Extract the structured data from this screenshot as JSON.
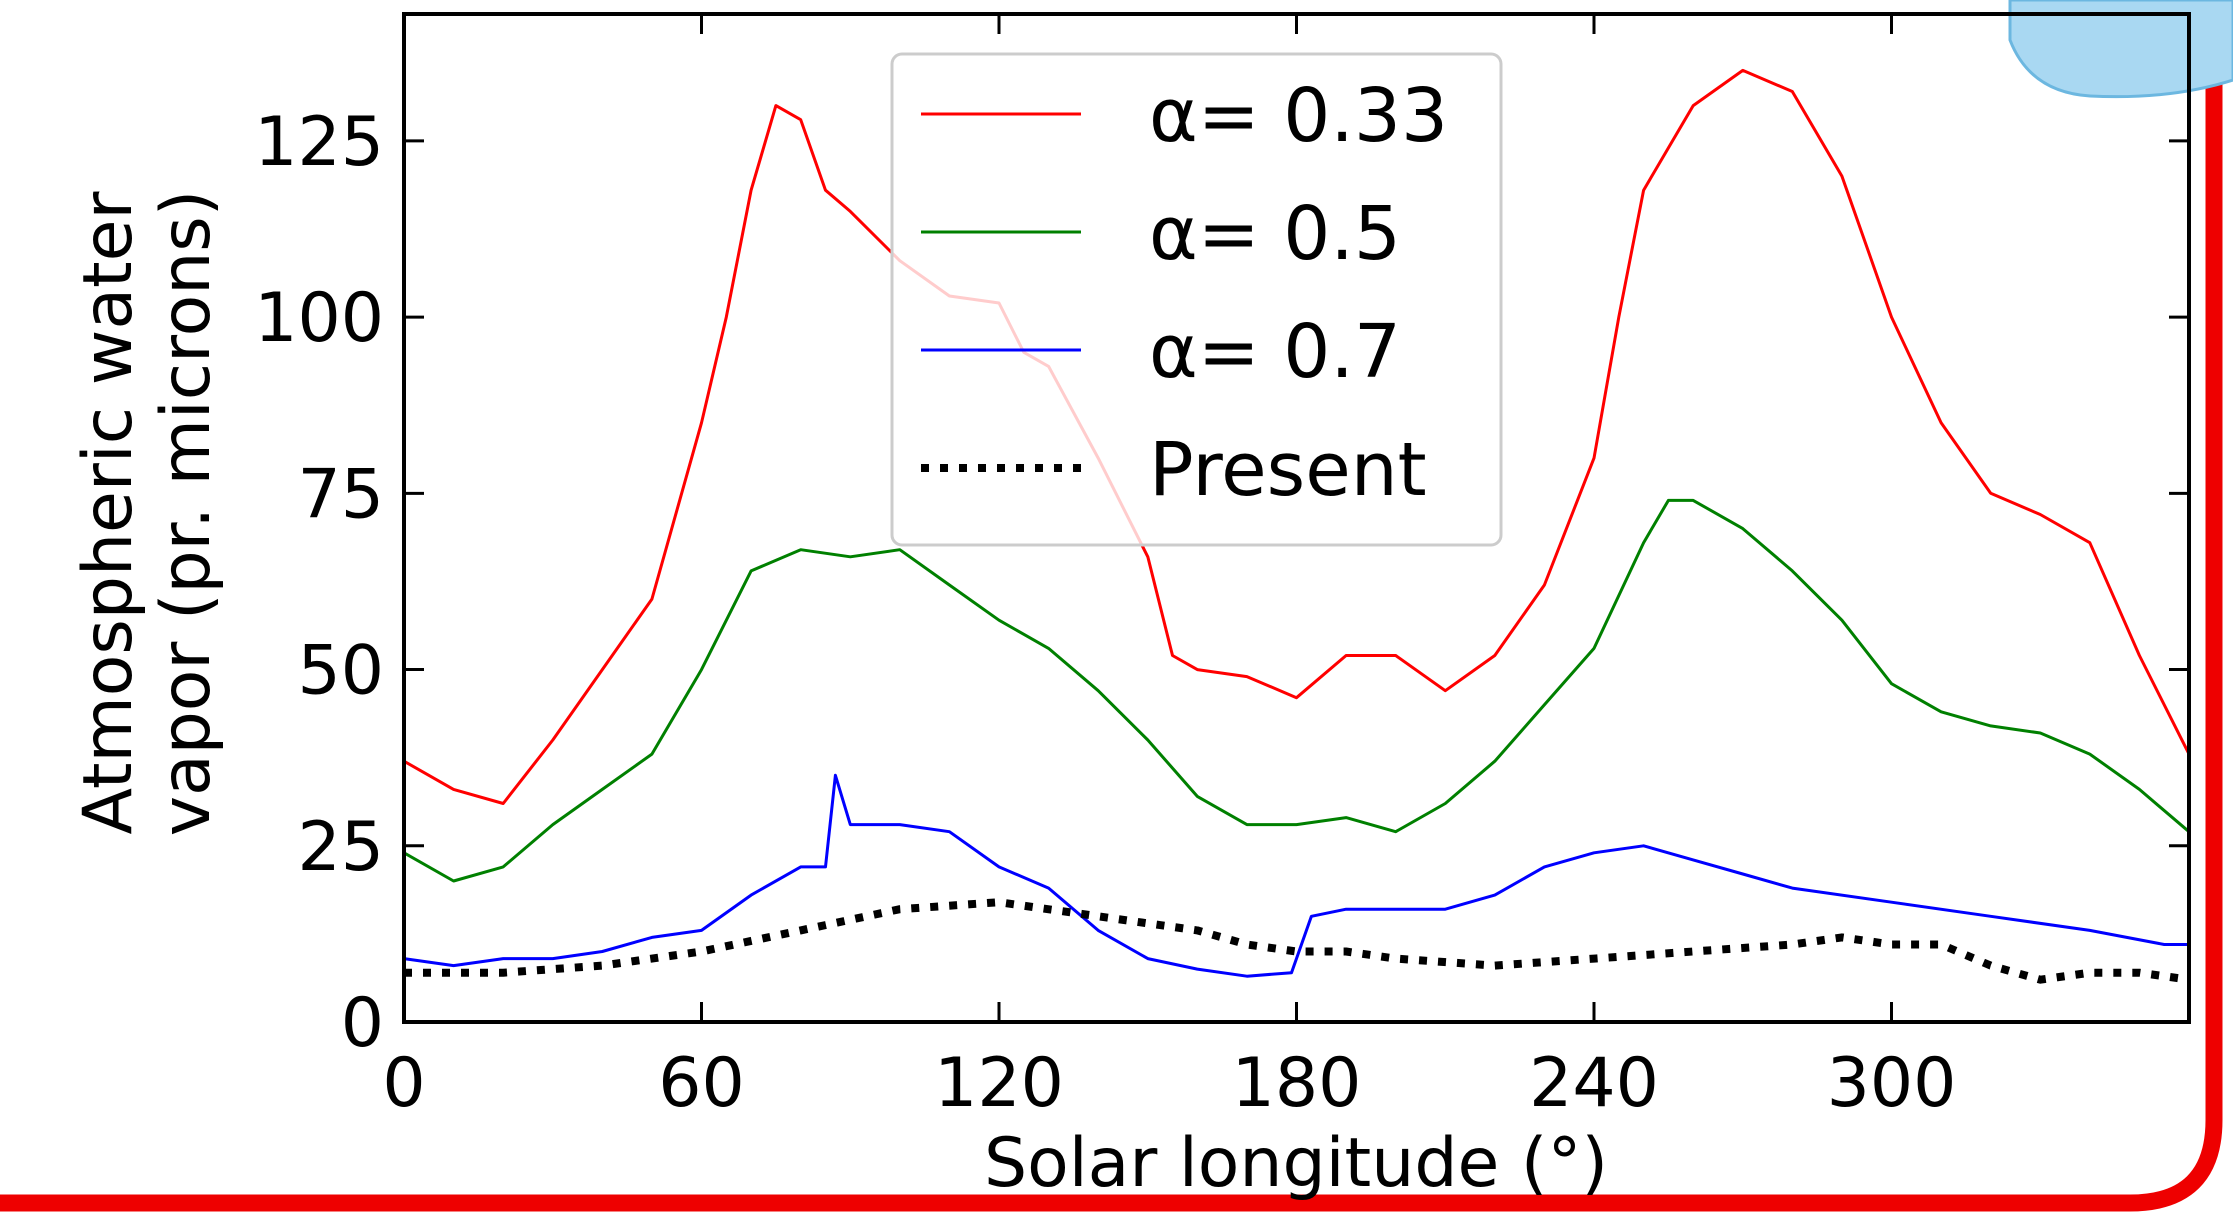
{
  "chart_data": {
    "type": "line",
    "xlabel": "Solar longitude (°)",
    "ylabel": [
      "Atmospheric water",
      "vapor (pr. microns)"
    ],
    "xlim": [
      0,
      360
    ],
    "ylim": [
      0,
      143
    ],
    "xticks": [
      0,
      60,
      120,
      180,
      240,
      300
    ],
    "yticks": [
      0,
      25,
      50,
      75,
      100,
      125
    ],
    "legend": "upper center",
    "series": [
      {
        "name": "α= 0.33",
        "color": "#ff0000",
        "style": "solid",
        "x": [
          0,
          10,
          20,
          30,
          40,
          50,
          60,
          65,
          70,
          75,
          80,
          85,
          90,
          100,
          110,
          120,
          125,
          130,
          140,
          150,
          155,
          160,
          170,
          180,
          190,
          200,
          210,
          220,
          230,
          240,
          245,
          250,
          260,
          270,
          280,
          290,
          300,
          310,
          320,
          330,
          340,
          350,
          360
        ],
        "values": [
          37,
          33,
          31,
          40,
          50,
          60,
          85,
          100,
          118,
          130,
          128,
          118,
          115,
          108,
          103,
          102,
          95,
          93,
          80,
          66,
          52,
          50,
          49,
          46,
          52,
          52,
          47,
          52,
          62,
          80,
          100,
          118,
          130,
          135,
          132,
          120,
          100,
          85,
          75,
          72,
          68,
          52,
          38
        ]
      },
      {
        "name": "α= 0.5",
        "color": "#008000",
        "style": "solid",
        "x": [
          0,
          10,
          20,
          30,
          40,
          50,
          60,
          70,
          80,
          90,
          100,
          110,
          120,
          130,
          140,
          150,
          160,
          170,
          180,
          190,
          200,
          210,
          220,
          230,
          240,
          250,
          255,
          260,
          270,
          280,
          290,
          300,
          310,
          320,
          330,
          340,
          350,
          360
        ],
        "values": [
          24,
          20,
          22,
          28,
          33,
          38,
          50,
          64,
          67,
          66,
          67,
          62,
          57,
          53,
          47,
          40,
          32,
          28,
          28,
          29,
          27,
          31,
          37,
          45,
          53,
          68,
          74,
          74,
          70,
          64,
          57,
          48,
          44,
          42,
          41,
          38,
          33,
          27
        ]
      },
      {
        "name": "α= 0.7",
        "color": "#0000ff",
        "style": "solid",
        "x": [
          0,
          10,
          20,
          30,
          40,
          50,
          60,
          70,
          80,
          85,
          87,
          90,
          100,
          110,
          120,
          130,
          140,
          150,
          160,
          170,
          179,
          183,
          190,
          200,
          210,
          220,
          230,
          240,
          250,
          260,
          270,
          280,
          300,
          320,
          340,
          355,
          360
        ],
        "values": [
          9,
          8,
          9,
          9,
          10,
          12,
          13,
          18,
          22,
          22,
          35,
          28,
          28,
          27,
          22,
          19,
          13,
          9,
          7.5,
          6.5,
          7,
          15,
          16,
          16,
          16,
          18,
          22,
          24,
          25,
          23,
          21,
          19,
          17,
          15,
          13,
          11,
          11
        ]
      },
      {
        "name": "Present",
        "color": "#000000",
        "style": "dotted",
        "x": [
          0,
          20,
          40,
          60,
          80,
          100,
          120,
          140,
          160,
          170,
          180,
          190,
          200,
          220,
          240,
          260,
          280,
          290,
          300,
          310,
          320,
          330,
          340,
          350,
          360
        ],
        "values": [
          7,
          7,
          8,
          10,
          13,
          16,
          17,
          15,
          13,
          11,
          10,
          10,
          9,
          8,
          9,
          10,
          11,
          12,
          11,
          11,
          8,
          6,
          7,
          7,
          6
        ]
      }
    ]
  }
}
